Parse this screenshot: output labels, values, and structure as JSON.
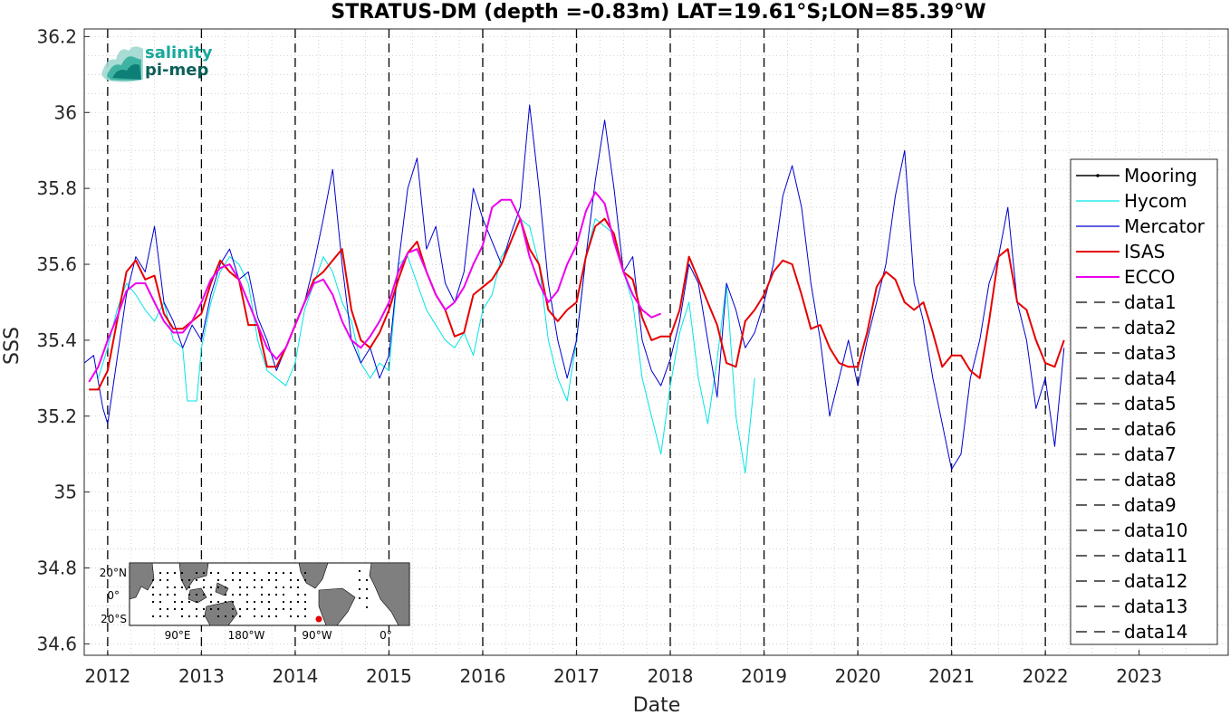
{
  "chart_data": {
    "type": "line",
    "title": "STRATUS-DM (depth =-0.83m) LAT=19.61°S;LON=85.39°W",
    "xlabel": "Date",
    "ylabel": "SSS",
    "xlim": [
      2011.75,
      2023.95
    ],
    "ylim": [
      34.57,
      36.22
    ],
    "x_ticks": [
      "2012",
      "2013",
      "2014",
      "2015",
      "2016",
      "2017",
      "2018",
      "2019",
      "2020",
      "2021",
      "2022",
      "2023"
    ],
    "x_tick_values": [
      2012,
      2013,
      2014,
      2015,
      2016,
      2017,
      2018,
      2019,
      2020,
      2021,
      2022,
      2023
    ],
    "y_ticks": [
      "34.6",
      "34.8",
      "35",
      "35.2",
      "35.4",
      "35.6",
      "35.8",
      "36",
      "36.2"
    ],
    "y_tick_values": [
      34.6,
      34.8,
      35.0,
      35.2,
      35.4,
      35.6,
      35.8,
      36.0,
      36.2
    ],
    "grid": "minor-dotted",
    "legend_position": "right",
    "vertical_lines_x": [
      2012,
      2013,
      2014,
      2015,
      2016,
      2017,
      2018,
      2019,
      2020,
      2021,
      2022
    ],
    "series": [
      {
        "name": "Mooring",
        "color": "#000000",
        "x": [],
        "y": []
      },
      {
        "name": "Hycom",
        "color": "#00e5e5",
        "x": [
          2011.9,
          2012.0,
          2012.1,
          2012.2,
          2012.3,
          2012.4,
          2012.5,
          2012.6,
          2012.7,
          2012.8,
          2012.85,
          2012.95,
          2013.0,
          2013.1,
          2013.2,
          2013.3,
          2013.4,
          2013.5,
          2013.6,
          2013.7,
          2013.8,
          2013.9,
          2014.0,
          2014.1,
          2014.2,
          2014.3,
          2014.4,
          2014.5,
          2014.6,
          2014.7,
          2014.8,
          2014.9,
          2015.0,
          2015.1,
          2015.2,
          2015.3,
          2015.4,
          2015.5,
          2015.6,
          2015.7,
          2015.8,
          2015.9,
          2016.0,
          2016.1,
          2016.2,
          2016.3,
          2016.4,
          2016.5,
          2016.6,
          2016.7,
          2016.8,
          2016.9,
          2017.0,
          2017.1,
          2017.2,
          2017.3,
          2017.4,
          2017.5,
          2017.6,
          2017.7,
          2017.8,
          2017.9,
          2018.0,
          2018.1,
          2018.2,
          2018.3,
          2018.4,
          2018.5,
          2018.6,
          2018.7,
          2018.8,
          2018.9
        ],
        "y": [
          35.3,
          35.38,
          35.48,
          35.55,
          35.52,
          35.48,
          35.45,
          35.5,
          35.4,
          35.38,
          35.24,
          35.24,
          35.38,
          35.5,
          35.58,
          35.62,
          35.6,
          35.55,
          35.4,
          35.32,
          35.3,
          35.28,
          35.34,
          35.48,
          35.55,
          35.62,
          35.58,
          35.5,
          35.45,
          35.34,
          35.3,
          35.34,
          35.32,
          35.6,
          35.62,
          35.55,
          35.48,
          35.44,
          35.4,
          35.38,
          35.42,
          35.36,
          35.48,
          35.52,
          35.62,
          35.66,
          35.72,
          35.7,
          35.6,
          35.4,
          35.3,
          35.24,
          35.4,
          35.62,
          35.72,
          35.7,
          35.68,
          35.58,
          35.5,
          35.3,
          35.2,
          35.1,
          35.28,
          35.42,
          35.5,
          35.3,
          35.18,
          35.35,
          35.55,
          35.2,
          35.05,
          35.3
        ]
      },
      {
        "name": "Mercator",
        "color": "#0000cd",
        "x": [
          2011.75,
          2011.85,
          2011.95,
          2012.0,
          2012.1,
          2012.2,
          2012.3,
          2012.4,
          2012.5,
          2012.6,
          2012.7,
          2012.8,
          2012.9,
          2013.0,
          2013.1,
          2013.2,
          2013.3,
          2013.4,
          2013.5,
          2013.6,
          2013.7,
          2013.8,
          2013.9,
          2014.0,
          2014.1,
          2014.2,
          2014.3,
          2014.4,
          2014.5,
          2014.6,
          2014.7,
          2014.8,
          2014.9,
          2015.0,
          2015.1,
          2015.2,
          2015.3,
          2015.4,
          2015.5,
          2015.6,
          2015.7,
          2015.8,
          2015.9,
          2016.0,
          2016.1,
          2016.2,
          2016.3,
          2016.4,
          2016.5,
          2016.6,
          2016.7,
          2016.8,
          2016.9,
          2017.0,
          2017.1,
          2017.2,
          2017.3,
          2017.4,
          2017.5,
          2017.6,
          2017.7,
          2017.8,
          2017.9,
          2018.0,
          2018.1,
          2018.2,
          2018.3,
          2018.4,
          2018.5,
          2018.6,
          2018.7,
          2018.8,
          2018.9,
          2019.0,
          2019.1,
          2019.2,
          2019.3,
          2019.4,
          2019.5,
          2019.6,
          2019.7,
          2019.8,
          2019.9,
          2020.0,
          2020.1,
          2020.2,
          2020.3,
          2020.4,
          2020.5,
          2020.6,
          2020.7,
          2020.8,
          2020.9,
          2021.0,
          2021.1,
          2021.2,
          2021.3,
          2021.4,
          2021.5,
          2021.6,
          2021.7,
          2021.8,
          2021.9,
          2022.0,
          2022.1,
          2022.2
        ],
        "y": [
          35.34,
          35.36,
          35.22,
          35.18,
          35.35,
          35.52,
          35.62,
          35.58,
          35.7,
          35.5,
          35.45,
          35.38,
          35.44,
          35.4,
          35.52,
          35.6,
          35.64,
          35.56,
          35.58,
          35.46,
          35.4,
          35.32,
          35.38,
          35.44,
          35.5,
          35.6,
          35.72,
          35.85,
          35.6,
          35.4,
          35.34,
          35.38,
          35.3,
          35.36,
          35.6,
          35.8,
          35.88,
          35.64,
          35.7,
          35.55,
          35.5,
          35.58,
          35.8,
          35.72,
          35.66,
          35.6,
          35.68,
          35.75,
          36.02,
          35.8,
          35.55,
          35.4,
          35.3,
          35.4,
          35.62,
          35.82,
          35.98,
          35.8,
          35.58,
          35.62,
          35.4,
          35.32,
          35.28,
          35.35,
          35.45,
          35.6,
          35.55,
          35.4,
          35.25,
          35.55,
          35.48,
          35.38,
          35.42,
          35.5,
          35.6,
          35.78,
          35.86,
          35.75,
          35.55,
          35.4,
          35.2,
          35.3,
          35.4,
          35.28,
          35.4,
          35.5,
          35.6,
          35.78,
          35.9,
          35.55,
          35.45,
          35.3,
          35.18,
          35.06,
          35.1,
          35.3,
          35.4,
          35.55,
          35.62,
          35.75,
          35.5,
          35.4,
          35.22,
          35.3,
          35.12,
          35.38
        ]
      },
      {
        "name": "ISAS",
        "color": "#e60000",
        "x": [
          2011.8,
          2011.9,
          2012.0,
          2012.1,
          2012.2,
          2012.3,
          2012.4,
          2012.5,
          2012.6,
          2012.7,
          2012.8,
          2012.9,
          2013.0,
          2013.1,
          2013.2,
          2013.3,
          2013.4,
          2013.5,
          2013.6,
          2013.7,
          2013.8,
          2013.9,
          2014.0,
          2014.1,
          2014.2,
          2014.3,
          2014.4,
          2014.5,
          2014.6,
          2014.7,
          2014.8,
          2014.9,
          2015.0,
          2015.1,
          2015.2,
          2015.3,
          2015.4,
          2015.5,
          2015.6,
          2015.7,
          2015.8,
          2015.9,
          2016.0,
          2016.1,
          2016.2,
          2016.3,
          2016.4,
          2016.5,
          2016.6,
          2016.7,
          2016.8,
          2016.9,
          2017.0,
          2017.1,
          2017.2,
          2017.3,
          2017.4,
          2017.5,
          2017.6,
          2017.7,
          2017.8,
          2017.9,
          2018.0,
          2018.1,
          2018.2,
          2018.3,
          2018.4,
          2018.5,
          2018.6,
          2018.7,
          2018.8,
          2018.9,
          2019.0,
          2019.1,
          2019.2,
          2019.3,
          2019.4,
          2019.5,
          2019.6,
          2019.7,
          2019.8,
          2019.9,
          2020.0,
          2020.1,
          2020.2,
          2020.3,
          2020.4,
          2020.5,
          2020.6,
          2020.7,
          2020.8,
          2020.9,
          2021.0,
          2021.1,
          2021.2,
          2021.3,
          2021.4,
          2021.5,
          2021.6,
          2021.7,
          2021.8,
          2021.9,
          2022.0,
          2022.1,
          2022.2
        ],
        "y": [
          35.27,
          35.27,
          35.32,
          35.45,
          35.58,
          35.61,
          35.56,
          35.57,
          35.47,
          35.43,
          35.43,
          35.45,
          35.47,
          35.55,
          35.61,
          35.58,
          35.56,
          35.44,
          35.44,
          35.33,
          35.33,
          35.38,
          35.44,
          35.5,
          35.56,
          35.58,
          35.61,
          35.64,
          35.48,
          35.4,
          35.38,
          35.42,
          35.48,
          35.56,
          35.63,
          35.66,
          35.58,
          35.52,
          35.48,
          35.41,
          35.42,
          35.52,
          35.54,
          35.56,
          35.6,
          35.66,
          35.72,
          35.64,
          35.6,
          35.48,
          35.45,
          35.48,
          35.5,
          35.62,
          35.7,
          35.72,
          35.68,
          35.58,
          35.56,
          35.46,
          35.4,
          35.41,
          35.41,
          35.48,
          35.62,
          35.56,
          35.5,
          35.44,
          35.34,
          35.33,
          35.45,
          35.48,
          35.52,
          35.58,
          35.61,
          35.6,
          35.52,
          35.43,
          35.44,
          35.38,
          35.34,
          35.33,
          35.33,
          35.42,
          35.54,
          35.58,
          35.56,
          35.5,
          35.48,
          35.5,
          35.42,
          35.33,
          35.36,
          35.36,
          35.32,
          35.3,
          35.45,
          35.62,
          35.64,
          35.5,
          35.48,
          35.4,
          35.34,
          35.33,
          35.4
        ]
      },
      {
        "name": "ECCO",
        "color": "#ee00ee",
        "x": [
          2011.8,
          2011.9,
          2012.0,
          2012.1,
          2012.2,
          2012.3,
          2012.4,
          2012.5,
          2012.6,
          2012.7,
          2012.8,
          2012.9,
          2013.0,
          2013.1,
          2013.2,
          2013.3,
          2013.4,
          2013.5,
          2013.6,
          2013.7,
          2013.8,
          2013.9,
          2014.0,
          2014.1,
          2014.2,
          2014.3,
          2014.4,
          2014.5,
          2014.6,
          2014.7,
          2014.8,
          2014.9,
          2015.0,
          2015.1,
          2015.2,
          2015.3,
          2015.4,
          2015.5,
          2015.6,
          2015.7,
          2015.8,
          2015.9,
          2016.0,
          2016.1,
          2016.2,
          2016.3,
          2016.4,
          2016.5,
          2016.6,
          2016.7,
          2016.8,
          2016.9,
          2017.0,
          2017.1,
          2017.2,
          2017.3,
          2017.4,
          2017.5,
          2017.6,
          2017.7,
          2017.8,
          2017.9
        ],
        "y": [
          35.29,
          35.33,
          35.4,
          35.46,
          35.53,
          35.55,
          35.55,
          35.5,
          35.45,
          35.42,
          35.42,
          35.45,
          35.5,
          35.56,
          35.59,
          35.6,
          35.56,
          35.5,
          35.44,
          35.38,
          35.35,
          35.38,
          35.44,
          35.5,
          35.55,
          35.56,
          35.52,
          35.45,
          35.4,
          35.38,
          35.41,
          35.45,
          35.5,
          35.58,
          35.63,
          35.64,
          35.58,
          35.52,
          35.48,
          35.5,
          35.54,
          35.6,
          35.65,
          35.75,
          35.77,
          35.77,
          35.72,
          35.62,
          35.55,
          35.5,
          35.53,
          35.6,
          35.65,
          35.74,
          35.79,
          35.76,
          35.66,
          35.58,
          35.52,
          35.48,
          35.46,
          35.47
        ]
      },
      {
        "name": "data1",
        "color": "#000000",
        "x": [],
        "y": []
      },
      {
        "name": "data2",
        "color": "#000000",
        "x": [],
        "y": []
      },
      {
        "name": "data3",
        "color": "#000000",
        "x": [],
        "y": []
      },
      {
        "name": "data4",
        "color": "#000000",
        "x": [],
        "y": []
      },
      {
        "name": "data5",
        "color": "#000000",
        "x": [],
        "y": []
      },
      {
        "name": "data6",
        "color": "#000000",
        "x": [],
        "y": []
      },
      {
        "name": "data7",
        "color": "#000000",
        "x": [],
        "y": []
      },
      {
        "name": "data8",
        "color": "#000000",
        "x": [],
        "y": []
      },
      {
        "name": "data9",
        "color": "#000000",
        "x": [],
        "y": []
      },
      {
        "name": "data10",
        "color": "#000000",
        "x": [],
        "y": []
      },
      {
        "name": "data11",
        "color": "#000000",
        "x": [],
        "y": []
      },
      {
        "name": "data12",
        "color": "#000000",
        "x": [],
        "y": []
      },
      {
        "name": "data13",
        "color": "#000000",
        "x": [],
        "y": []
      },
      {
        "name": "data14",
        "color": "#000000",
        "x": [],
        "y": []
      }
    ]
  },
  "logo": {
    "line1": "salinity",
    "line2": "pi-mep",
    "color1": "#1aa89a",
    "color2": "#0e5f5a"
  },
  "inset_map": {
    "lat_labels": [
      "20°N",
      "0°",
      "20°S"
    ],
    "lon_labels": [
      "90°E",
      "180°W",
      "90°W",
      "0°"
    ],
    "marker_color": "#e60000",
    "land_color": "#7f7f7f"
  }
}
